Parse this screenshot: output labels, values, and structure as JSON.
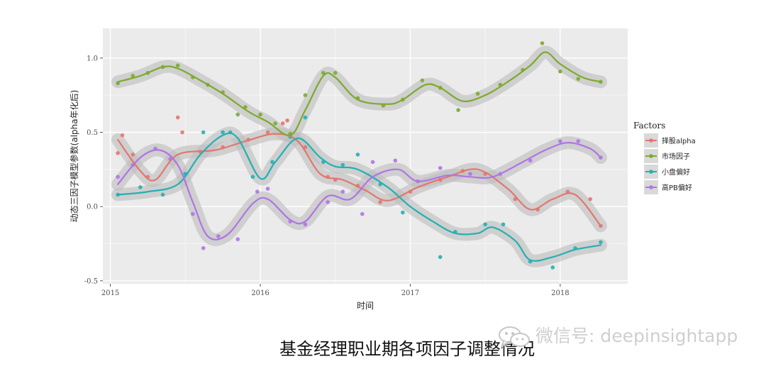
{
  "chart_data": {
    "type": "scatter",
    "xlabel": "时间",
    "ylabel": "动态三因子模型参数(alpha年化后)",
    "xlim": [
      2014.95,
      2018.45
    ],
    "ylim": [
      -0.52,
      1.2
    ],
    "x_ticks": [
      2015,
      2016,
      2017,
      2018
    ],
    "x_tick_labels": [
      "2015",
      "2016",
      "2017",
      "2018"
    ],
    "y_ticks": [
      -0.5,
      0,
      0.5,
      1
    ],
    "y_tick_labels": [
      "-0.5",
      "0.0",
      "0.5",
      "1.0"
    ],
    "grid": true,
    "legend_position": "right",
    "legend_title": "Factors",
    "series": [
      {
        "name": "择股alpha",
        "color": "#e2776d",
        "smooth": [
          [
            2015.05,
            0.45
          ],
          [
            2015.2,
            0.24
          ],
          [
            2015.3,
            0.18
          ],
          [
            2015.45,
            0.35
          ],
          [
            2015.7,
            0.38
          ],
          [
            2015.9,
            0.44
          ],
          [
            2016.1,
            0.49
          ],
          [
            2016.25,
            0.44
          ],
          [
            2016.4,
            0.22
          ],
          [
            2016.55,
            0.18
          ],
          [
            2016.7,
            0.11
          ],
          [
            2016.85,
            0.04
          ],
          [
            2017.05,
            0.13
          ],
          [
            2017.25,
            0.2
          ],
          [
            2017.45,
            0.25
          ],
          [
            2017.65,
            0.12
          ],
          [
            2017.8,
            -0.02
          ],
          [
            2017.95,
            0.05
          ],
          [
            2018.1,
            0.08
          ],
          [
            2018.27,
            -0.13
          ]
        ],
        "points": [
          [
            2015.05,
            0.36
          ],
          [
            2015.08,
            0.48
          ],
          [
            2015.15,
            0.35
          ],
          [
            2015.25,
            0.2
          ],
          [
            2015.45,
            0.6
          ],
          [
            2015.48,
            0.5
          ],
          [
            2015.6,
            0.37
          ],
          [
            2015.75,
            0.4
          ],
          [
            2015.92,
            0.45
          ],
          [
            2016.05,
            0.5
          ],
          [
            2016.15,
            0.56
          ],
          [
            2016.18,
            0.58
          ],
          [
            2016.3,
            0.4
          ],
          [
            2016.45,
            0.2
          ],
          [
            2016.5,
            0.18
          ],
          [
            2016.65,
            0.14
          ],
          [
            2016.8,
            0.03
          ],
          [
            2017.0,
            0.1
          ],
          [
            2017.2,
            0.18
          ],
          [
            2017.35,
            0.24
          ],
          [
            2017.5,
            0.22
          ],
          [
            2017.7,
            0.05
          ],
          [
            2017.85,
            -0.02
          ],
          [
            2018.05,
            0.1
          ],
          [
            2018.2,
            0.05
          ],
          [
            2018.27,
            -0.13
          ]
        ]
      },
      {
        "name": "市场因子",
        "color": "#7caa2e",
        "smooth": [
          [
            2015.05,
            0.84
          ],
          [
            2015.2,
            0.88
          ],
          [
            2015.35,
            0.94
          ],
          [
            2015.45,
            0.93
          ],
          [
            2015.6,
            0.85
          ],
          [
            2015.75,
            0.76
          ],
          [
            2015.92,
            0.64
          ],
          [
            2016.05,
            0.57
          ],
          [
            2016.2,
            0.48
          ],
          [
            2016.3,
            0.65
          ],
          [
            2016.42,
            0.88
          ],
          [
            2016.5,
            0.87
          ],
          [
            2016.65,
            0.72
          ],
          [
            2016.85,
            0.69
          ],
          [
            2016.95,
            0.72
          ],
          [
            2017.1,
            0.82
          ],
          [
            2017.2,
            0.8
          ],
          [
            2017.35,
            0.71
          ],
          [
            2017.5,
            0.75
          ],
          [
            2017.65,
            0.84
          ],
          [
            2017.8,
            0.95
          ],
          [
            2017.9,
            1.04
          ],
          [
            2018.0,
            0.96
          ],
          [
            2018.15,
            0.87
          ],
          [
            2018.27,
            0.84
          ]
        ],
        "points": [
          [
            2015.05,
            0.83
          ],
          [
            2015.15,
            0.88
          ],
          [
            2015.25,
            0.9
          ],
          [
            2015.35,
            0.94
          ],
          [
            2015.45,
            0.95
          ],
          [
            2015.55,
            0.87
          ],
          [
            2015.65,
            0.82
          ],
          [
            2015.75,
            0.77
          ],
          [
            2015.85,
            0.62
          ],
          [
            2015.9,
            0.67
          ],
          [
            2016.0,
            0.62
          ],
          [
            2016.1,
            0.56
          ],
          [
            2016.2,
            0.49
          ],
          [
            2016.3,
            0.75
          ],
          [
            2016.42,
            0.9
          ],
          [
            2016.5,
            0.9
          ],
          [
            2016.65,
            0.73
          ],
          [
            2016.82,
            0.68
          ],
          [
            2016.95,
            0.72
          ],
          [
            2017.08,
            0.85
          ],
          [
            2017.2,
            0.8
          ],
          [
            2017.32,
            0.65
          ],
          [
            2017.45,
            0.76
          ],
          [
            2017.6,
            0.82
          ],
          [
            2017.75,
            0.92
          ],
          [
            2017.88,
            1.1
          ],
          [
            2018.0,
            0.91
          ],
          [
            2018.12,
            0.86
          ],
          [
            2018.27,
            0.84
          ]
        ]
      },
      {
        "name": "小盘偏好",
        "color": "#22b1b2",
        "smooth": [
          [
            2015.05,
            0.08
          ],
          [
            2015.25,
            0.1
          ],
          [
            2015.45,
            0.15
          ],
          [
            2015.6,
            0.35
          ],
          [
            2015.75,
            0.48
          ],
          [
            2015.85,
            0.46
          ],
          [
            2016.0,
            0.19
          ],
          [
            2016.1,
            0.3
          ],
          [
            2016.25,
            0.46
          ],
          [
            2016.4,
            0.33
          ],
          [
            2016.5,
            0.27
          ],
          [
            2016.65,
            0.25
          ],
          [
            2016.85,
            0.13
          ],
          [
            2017.0,
            0.0
          ],
          [
            2017.15,
            -0.1
          ],
          [
            2017.3,
            -0.18
          ],
          [
            2017.45,
            -0.18
          ],
          [
            2017.55,
            -0.14
          ],
          [
            2017.7,
            -0.23
          ],
          [
            2017.8,
            -0.36
          ],
          [
            2017.95,
            -0.34
          ],
          [
            2018.1,
            -0.29
          ],
          [
            2018.27,
            -0.26
          ]
        ],
        "points": [
          [
            2015.05,
            0.08
          ],
          [
            2015.2,
            0.13
          ],
          [
            2015.35,
            0.08
          ],
          [
            2015.5,
            0.22
          ],
          [
            2015.62,
            0.5
          ],
          [
            2015.75,
            0.5
          ],
          [
            2015.8,
            0.5
          ],
          [
            2015.95,
            0.2
          ],
          [
            2016.08,
            0.3
          ],
          [
            2016.2,
            0.47
          ],
          [
            2016.3,
            0.6
          ],
          [
            2016.42,
            0.3
          ],
          [
            2016.55,
            0.28
          ],
          [
            2016.65,
            0.35
          ],
          [
            2016.8,
            0.15
          ],
          [
            2016.95,
            -0.04
          ],
          [
            2017.2,
            -0.34
          ],
          [
            2017.3,
            -0.17
          ],
          [
            2017.5,
            -0.12
          ],
          [
            2017.62,
            -0.12
          ],
          [
            2017.8,
            -0.37
          ],
          [
            2017.95,
            -0.41
          ],
          [
            2018.1,
            -0.28
          ],
          [
            2018.27,
            -0.24
          ]
        ]
      },
      {
        "name": "高PB偏好",
        "color": "#b074e5",
        "smooth": [
          [
            2015.05,
            0.15
          ],
          [
            2015.2,
            0.33
          ],
          [
            2015.33,
            0.38
          ],
          [
            2015.45,
            0.28
          ],
          [
            2015.55,
            0.03
          ],
          [
            2015.65,
            -0.2
          ],
          [
            2015.78,
            -0.19
          ],
          [
            2015.95,
            0.02
          ],
          [
            2016.05,
            0.05
          ],
          [
            2016.2,
            -0.09
          ],
          [
            2016.3,
            -0.1
          ],
          [
            2016.45,
            0.07
          ],
          [
            2016.6,
            0.05
          ],
          [
            2016.75,
            0.2
          ],
          [
            2016.92,
            0.25
          ],
          [
            2017.05,
            0.17
          ],
          [
            2017.25,
            0.21
          ],
          [
            2017.4,
            0.2
          ],
          [
            2017.55,
            0.2
          ],
          [
            2017.75,
            0.3
          ],
          [
            2017.9,
            0.38
          ],
          [
            2018.05,
            0.43
          ],
          [
            2018.2,
            0.39
          ],
          [
            2018.27,
            0.33
          ]
        ],
        "points": [
          [
            2015.05,
            0.2
          ],
          [
            2015.15,
            0.28
          ],
          [
            2015.3,
            0.39
          ],
          [
            2015.4,
            0.32
          ],
          [
            2015.55,
            -0.05
          ],
          [
            2015.62,
            -0.28
          ],
          [
            2015.72,
            -0.2
          ],
          [
            2015.85,
            -0.22
          ],
          [
            2015.98,
            0.1
          ],
          [
            2016.05,
            0.12
          ],
          [
            2016.2,
            -0.1
          ],
          [
            2016.3,
            -0.12
          ],
          [
            2016.45,
            0.03
          ],
          [
            2016.55,
            0.1
          ],
          [
            2016.68,
            -0.05
          ],
          [
            2016.75,
            0.3
          ],
          [
            2016.9,
            0.31
          ],
          [
            2017.05,
            0.17
          ],
          [
            2017.2,
            0.26
          ],
          [
            2017.4,
            0.22
          ],
          [
            2017.6,
            0.22
          ],
          [
            2017.8,
            0.31
          ],
          [
            2018.0,
            0.44
          ],
          [
            2018.12,
            0.44
          ],
          [
            2018.27,
            0.33
          ]
        ]
      }
    ]
  },
  "caption": {
    "title": "基金经理职业期各项因子调整情况"
  },
  "watermark": {
    "text": "微信号: deepinsightapp",
    "icon": "wechat-icon"
  }
}
